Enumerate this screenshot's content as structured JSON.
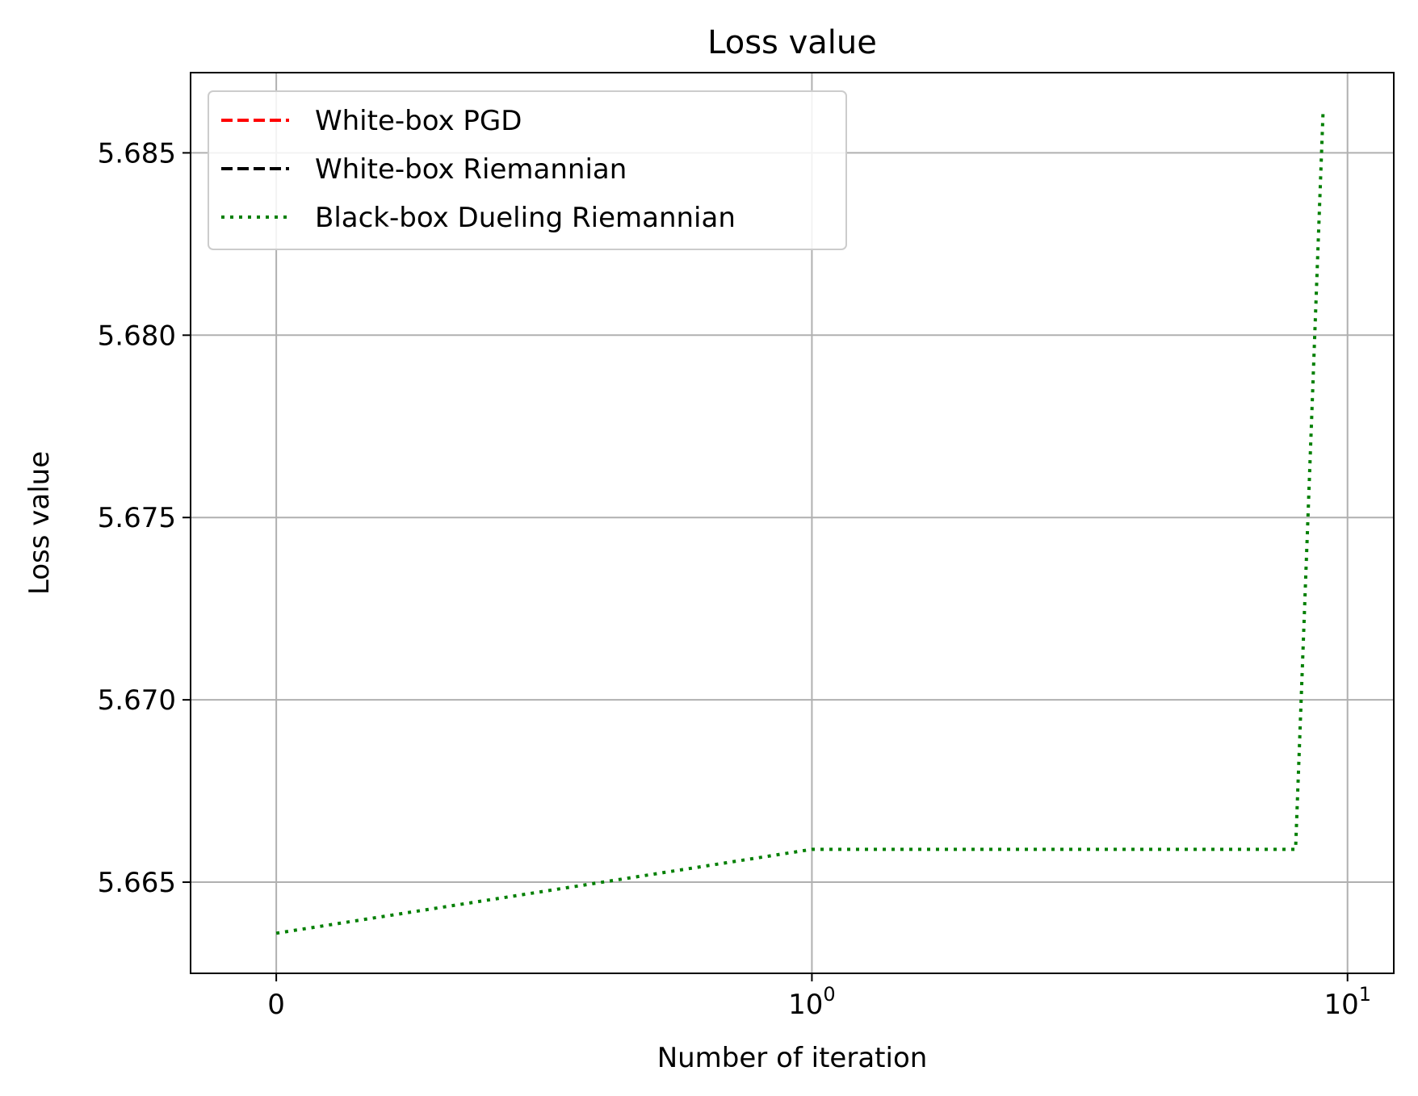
{
  "chart_data": {
    "type": "line",
    "title": "Loss value",
    "xlabel": "Number of iteration",
    "ylabel": "Loss value",
    "xscale": "symlog",
    "xlim": [
      -0.16,
      12.2
    ],
    "ylim": [
      5.6625,
      5.6872
    ],
    "grid": true,
    "legend_position": "upper-left",
    "xticks": [
      {
        "value": 0,
        "base": "0",
        "exp": ""
      },
      {
        "value": 1,
        "base": "10",
        "exp": "0"
      },
      {
        "value": 10,
        "base": "10",
        "exp": "1"
      }
    ],
    "yticks": [
      {
        "value": 5.665,
        "label": "5.665"
      },
      {
        "value": 5.67,
        "label": "5.670"
      },
      {
        "value": 5.675,
        "label": "5.675"
      },
      {
        "value": 5.68,
        "label": "5.680"
      },
      {
        "value": 5.685,
        "label": "5.685"
      }
    ],
    "series": [
      {
        "name": "White-box PGD",
        "color": "#ff0000",
        "dash": "dashed",
        "x": [],
        "y": []
      },
      {
        "name": "White-box Riemannian",
        "color": "#000000",
        "dash": "dashed",
        "x": [],
        "y": []
      },
      {
        "name": "Black-box Dueling Riemannian",
        "color": "#007f00",
        "dash": "dotted",
        "x": [
          0,
          1,
          2,
          3,
          4,
          5,
          6,
          7,
          8,
          9
        ],
        "y": [
          5.6636,
          5.6659,
          5.6659,
          5.6659,
          5.6659,
          5.6659,
          5.6659,
          5.6659,
          5.6659,
          5.6861
        ]
      }
    ]
  }
}
